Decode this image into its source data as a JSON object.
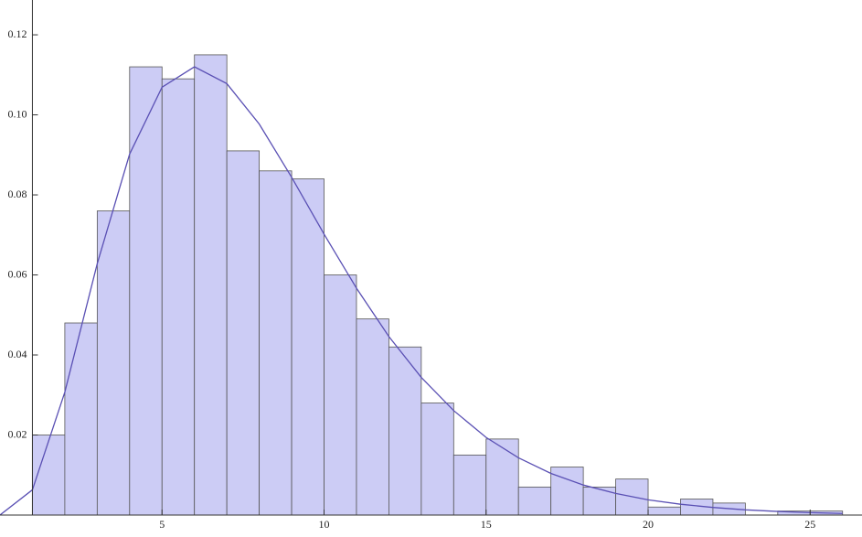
{
  "chart_data": {
    "type": "histogram",
    "bins": [
      1,
      2,
      3,
      4,
      5,
      6,
      7,
      8,
      9,
      10,
      11,
      12,
      13,
      14,
      15,
      16,
      17,
      18,
      19,
      20,
      21,
      22,
      23,
      24,
      25,
      26
    ],
    "values": [
      0.02,
      0.048,
      0.076,
      0.112,
      0.109,
      0.115,
      0.091,
      0.086,
      0.084,
      0.06,
      0.049,
      0.042,
      0.028,
      0.015,
      0.019,
      0.007,
      0.012,
      0.007,
      0.009,
      0.002,
      0.004,
      0.003,
      0,
      0.001,
      0.001
    ],
    "color": "#ccccf5",
    "edge_color": "#555555",
    "fit": {
      "type": "line",
      "color": "#5a50b4",
      "x": [
        0,
        1,
        2,
        3,
        4,
        5,
        6,
        7,
        8,
        9,
        10,
        11,
        12,
        13,
        14,
        15,
        16,
        17,
        18,
        19,
        20,
        21,
        22,
        23,
        24,
        25,
        26
      ],
      "values": [
        0,
        0.0063,
        0.0307,
        0.0628,
        0.0902,
        0.1069,
        0.112,
        0.1078,
        0.0977,
        0.0844,
        0.0702,
        0.0567,
        0.0446,
        0.0344,
        0.0261,
        0.0194,
        0.0143,
        0.0104,
        0.0075,
        0.0054,
        0.0038,
        0.0027,
        0.0019,
        0.0013,
        0.0009,
        0.0006,
        0.0004
      ]
    },
    "xlim": [
      0,
      26.6
    ],
    "ylim": [
      0,
      0.1287
    ],
    "y_axis_at": 1,
    "xticks": [
      5,
      10,
      15,
      20,
      25
    ],
    "yticks": [
      0.02,
      0.04,
      0.06,
      0.08,
      {
        "value": 0.1,
        "label": "0.10"
      },
      0.12
    ]
  }
}
